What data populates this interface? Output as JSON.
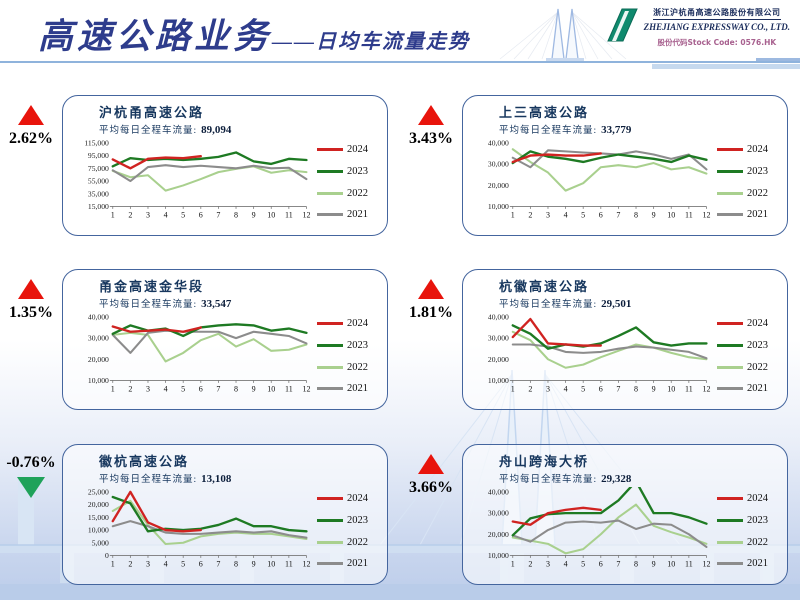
{
  "header": {
    "title": "高速公路业务",
    "subtitle": "——日均车流量走势",
    "logo": {
      "company_cn": "浙江沪杭甬高速公路股份有限公司",
      "company_en": "ZHEJIANG EXPRESSWAY CO., LTD.",
      "stock_code_label": "股份代码Stock Code: 0576.HK"
    }
  },
  "palette": {
    "series_2024": "#d02321",
    "series_2023": "#1e7a23",
    "series_2022": "#a9d08e",
    "series_2021": "#8c8c8c",
    "up": "#e8140c",
    "down": "#1fa25a",
    "panel_border": "#44659e",
    "title_navy": "#17375e",
    "logo_green": "#0f8a6e",
    "stock_code_pink": "#a8618f"
  },
  "legend_order": [
    "2024",
    "2023",
    "2022",
    "2021"
  ],
  "chart_data": [
    {
      "type": "line",
      "title": "沪杭甬高速公路",
      "metric_label": "平均每日全程车流量:",
      "metric_value": "89,094",
      "change": "2.62%",
      "direction": "up",
      "x": [
        1,
        2,
        3,
        4,
        5,
        6,
        7,
        8,
        9,
        10,
        11,
        12
      ],
      "ylim": [
        15000,
        115000
      ],
      "ystep": 20000,
      "grid": false,
      "legend_position": "right",
      "series": [
        {
          "name": "2024",
          "values": [
            89000,
            75000,
            90000,
            92000,
            91000,
            94000
          ]
        },
        {
          "name": "2023",
          "values": [
            78000,
            91000,
            88000,
            90000,
            88000,
            90000,
            93000,
            100000,
            86000,
            82000,
            90000,
            88000
          ]
        },
        {
          "name": "2022",
          "values": [
            71000,
            61000,
            64000,
            40000,
            48000,
            58000,
            69000,
            74000,
            78000,
            68000,
            72000,
            69000
          ]
        },
        {
          "name": "2021",
          "values": [
            72000,
            55000,
            77000,
            80000,
            77000,
            79000,
            77000,
            75000,
            79000,
            75000,
            76000,
            58000
          ]
        }
      ]
    },
    {
      "type": "line",
      "title": "上三高速公路",
      "metric_label": "平均每日全程车流量:",
      "metric_value": "33,779",
      "change": "3.43%",
      "direction": "up",
      "x": [
        1,
        2,
        3,
        4,
        5,
        6,
        7,
        8,
        9,
        10,
        11,
        12
      ],
      "ylim": [
        10000,
        40000
      ],
      "ystep": 10000,
      "grid": false,
      "legend_position": "right",
      "series": [
        {
          "name": "2024",
          "values": [
            31000,
            34000,
            34500,
            34000,
            34000,
            35000
          ]
        },
        {
          "name": "2023",
          "values": [
            30500,
            36000,
            33500,
            32500,
            31000,
            33000,
            34500,
            33500,
            32500,
            31000,
            34000,
            32000
          ]
        },
        {
          "name": "2022",
          "values": [
            37000,
            31000,
            26000,
            17500,
            21000,
            28500,
            29500,
            28500,
            30500,
            27500,
            28500,
            25500
          ]
        },
        {
          "name": "2021",
          "values": [
            33000,
            28500,
            36500,
            36000,
            35500,
            35000,
            34500,
            36000,
            34500,
            32500,
            34500,
            27500
          ]
        }
      ]
    },
    {
      "type": "line",
      "title": "甬金高速金华段",
      "metric_label": "平均每日全程车流量:",
      "metric_value": "33,547",
      "change": "1.35%",
      "direction": "up",
      "x": [
        1,
        2,
        3,
        4,
        5,
        6,
        7,
        8,
        9,
        10,
        11,
        12
      ],
      "ylim": [
        10000,
        40000
      ],
      "ystep": 10000,
      "grid": false,
      "legend_position": "right",
      "series": [
        {
          "name": "2024",
          "values": [
            35500,
            33000,
            33500,
            34000,
            33000,
            35000
          ]
        },
        {
          "name": "2023",
          "values": [
            32000,
            36000,
            33500,
            34500,
            31000,
            35000,
            36000,
            36500,
            36000,
            33500,
            34500,
            32500
          ]
        },
        {
          "name": "2022",
          "values": [
            31500,
            32500,
            31500,
            19000,
            23000,
            29000,
            32000,
            26000,
            29500,
            24000,
            24500,
            27000
          ]
        },
        {
          "name": "2021",
          "values": [
            31500,
            23000,
            32500,
            33500,
            33000,
            33000,
            33000,
            30000,
            33000,
            32000,
            31000,
            27500
          ]
        }
      ]
    },
    {
      "type": "line",
      "title": "杭徽高速公路",
      "metric_label": "平均每日全程车流量:",
      "metric_value": "29,501",
      "change": "1.81%",
      "direction": "up",
      "x": [
        1,
        2,
        3,
        4,
        5,
        6,
        7,
        8,
        9,
        10,
        11,
        12
      ],
      "ylim": [
        10000,
        40000
      ],
      "ystep": 10000,
      "grid": false,
      "legend_position": "right",
      "series": [
        {
          "name": "2024",
          "values": [
            30500,
            39000,
            27500,
            27000,
            26500,
            26500
          ]
        },
        {
          "name": "2023",
          "values": [
            36000,
            32000,
            25000,
            27000,
            26000,
            27500,
            31000,
            35000,
            28000,
            26500,
            27500,
            27500
          ]
        },
        {
          "name": "2022",
          "values": [
            33000,
            29000,
            20000,
            16000,
            17500,
            21000,
            24000,
            27000,
            25500,
            23000,
            21000,
            20000
          ]
        },
        {
          "name": "2021",
          "values": [
            27000,
            27000,
            26000,
            23500,
            23000,
            23500,
            25000,
            26000,
            25500,
            24500,
            23500,
            20500
          ]
        }
      ]
    },
    {
      "type": "line",
      "title": "徽杭高速公路",
      "metric_label": "平均每日全程车流量:",
      "metric_value": "13,108",
      "change": "-0.76%",
      "direction": "down",
      "x": [
        1,
        2,
        3,
        4,
        5,
        6,
        7,
        8,
        9,
        10,
        11,
        12
      ],
      "ylim": [
        0,
        25000
      ],
      "ystep": 5000,
      "grid": false,
      "legend_position": "right",
      "series": [
        {
          "name": "2024",
          "values": [
            13500,
            25000,
            13000,
            10000,
            9500,
            10000
          ]
        },
        {
          "name": "2023",
          "values": [
            23000,
            20500,
            9500,
            10500,
            10000,
            10500,
            12000,
            14500,
            11500,
            11500,
            10000,
            9500
          ]
        },
        {
          "name": "2022",
          "values": [
            17500,
            21500,
            12000,
            4500,
            5000,
            7500,
            8500,
            9000,
            8500,
            8500,
            7500,
            6500
          ]
        },
        {
          "name": "2021",
          "values": [
            11500,
            13500,
            11500,
            9000,
            8500,
            8500,
            9000,
            9500,
            9000,
            9500,
            8000,
            7000
          ]
        }
      ]
    },
    {
      "type": "line",
      "title": "舟山跨海大桥",
      "metric_label": "平均每日全程车流量:",
      "metric_value": "29,328",
      "change": "3.66%",
      "direction": "up",
      "x": [
        1,
        2,
        3,
        4,
        5,
        6,
        7,
        8,
        9,
        10,
        11,
        12
      ],
      "ylim": [
        10000,
        40000
      ],
      "ystep": 10000,
      "grid": false,
      "legend_position": "right",
      "series": [
        {
          "name": "2024",
          "values": [
            26000,
            24500,
            30000,
            31500,
            32500,
            31500
          ]
        },
        {
          "name": "2023",
          "values": [
            19500,
            27500,
            29500,
            30000,
            30000,
            30000,
            36000,
            45000,
            30000,
            30000,
            28000,
            25000
          ]
        },
        {
          "name": "2022",
          "values": [
            18500,
            17000,
            15500,
            11000,
            13000,
            20000,
            28000,
            34000,
            24000,
            21000,
            18500,
            15500
          ]
        },
        {
          "name": "2021",
          "values": [
            19500,
            16500,
            22000,
            25500,
            26000,
            25500,
            26500,
            22500,
            25000,
            24500,
            20000,
            14000
          ]
        }
      ]
    }
  ]
}
